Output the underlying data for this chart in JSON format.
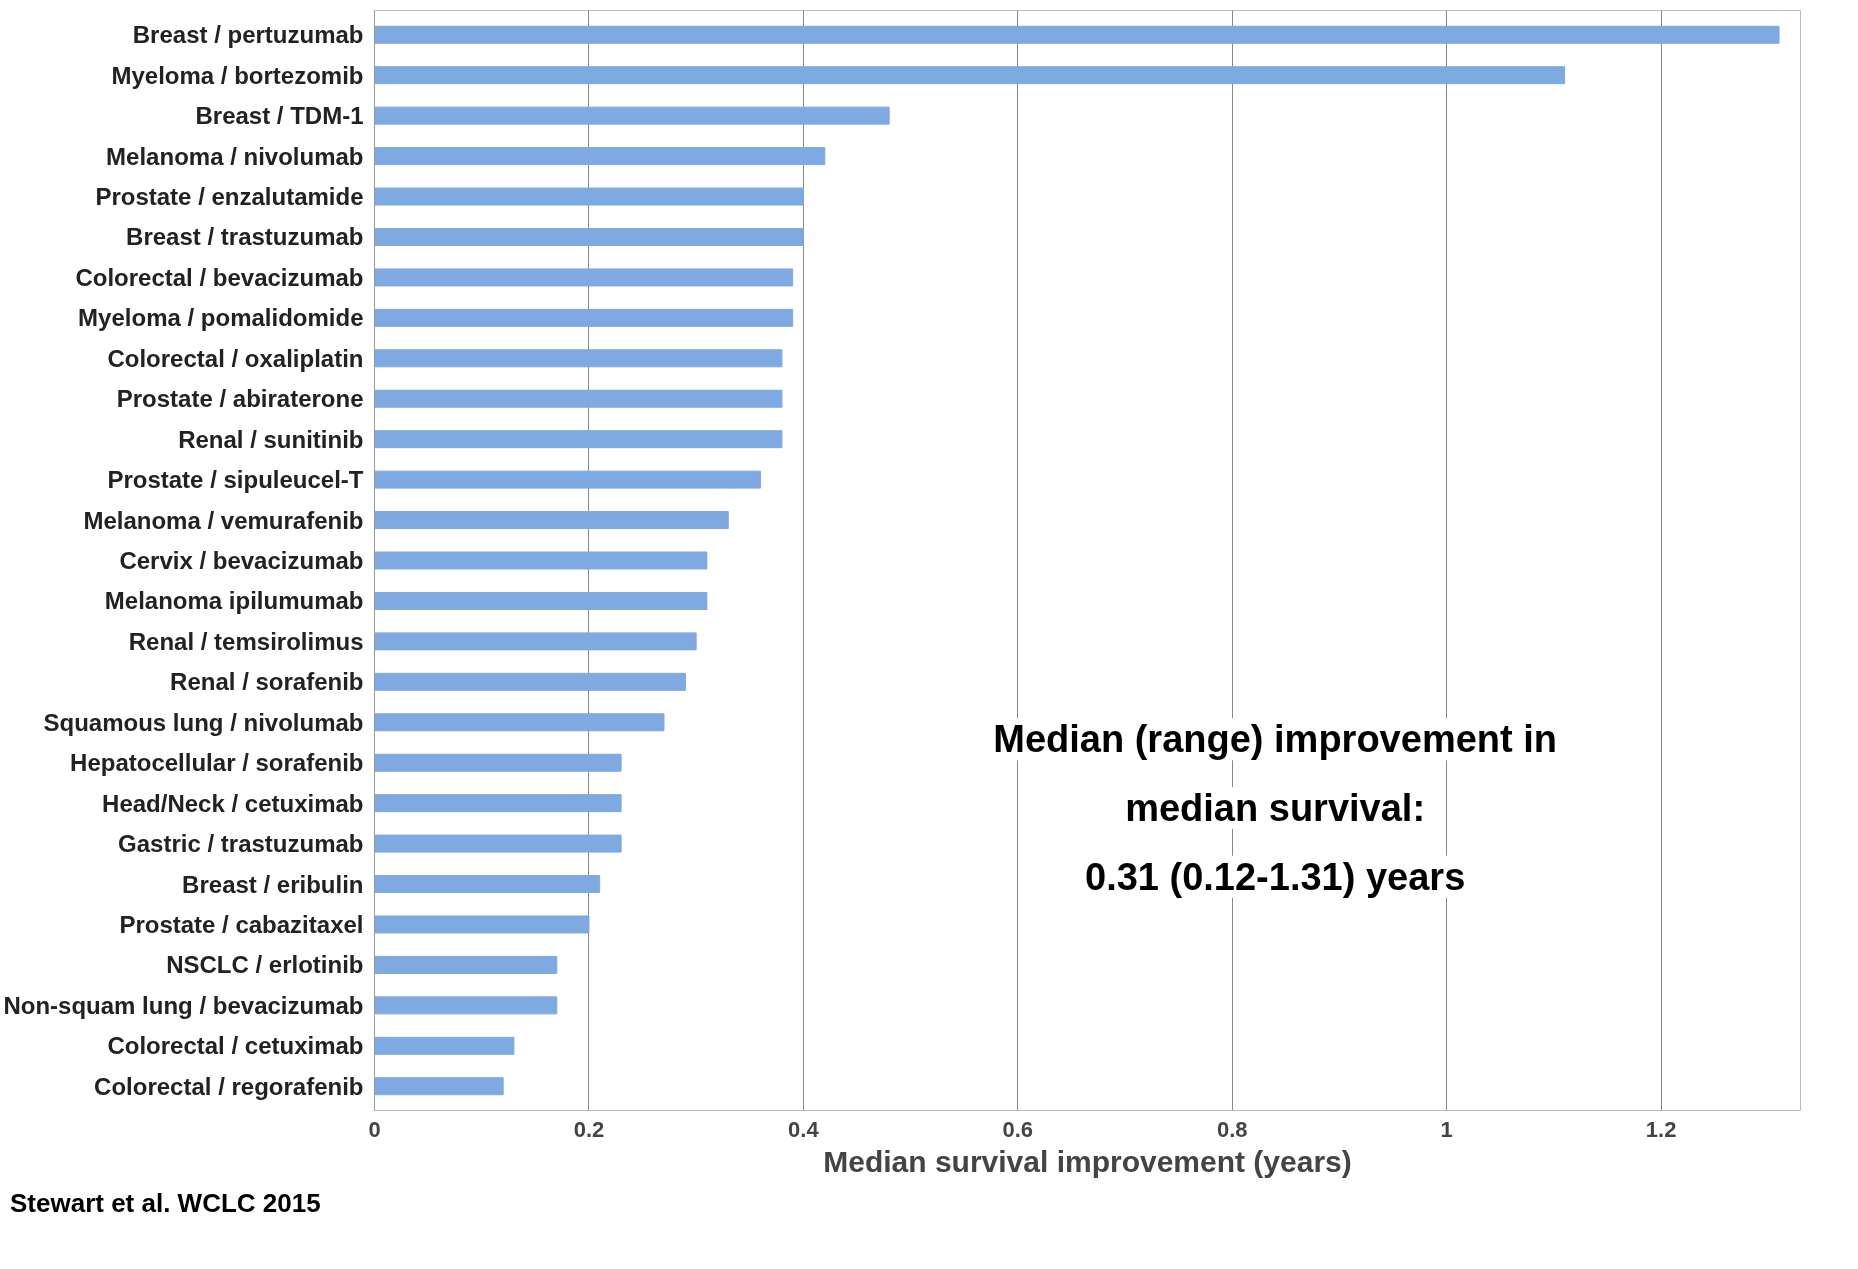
{
  "chart_data": {
    "type": "bar",
    "orientation": "horizontal",
    "xlabel": "Median survival improvement (years)",
    "categories": [
      "Breast / pertuzumab",
      "Myeloma / bortezomib",
      "Breast / TDM-1",
      "Melanoma / nivolumab",
      "Prostate / enzalutamide",
      "Breast / trastuzumab",
      "Colorectal / bevacizumab",
      "Myeloma / pomalidomide",
      "Colorectal / oxaliplatin",
      "Prostate / abiraterone",
      "Renal / sunitinib",
      "Prostate / sipuleucel-T",
      "Melanoma / vemurafenib",
      "Cervix / bevacizumab",
      "Melanoma ipilumumab",
      "Renal / temsirolimus",
      "Renal / sorafenib",
      "Squamous lung / nivolumab",
      "Hepatocellular / sorafenib",
      "Head/Neck / cetuximab",
      "Gastric / trastuzumab",
      "Breast / eribulin",
      "Prostate / cabazitaxel",
      "NSCLC / erlotinib",
      "Non-squam lung / bevacizumab",
      "Colorectal / cetuximab",
      "Colorectal / regorafenib"
    ],
    "values": [
      1.31,
      1.11,
      0.48,
      0.42,
      0.4,
      0.4,
      0.39,
      0.39,
      0.38,
      0.38,
      0.38,
      0.36,
      0.33,
      0.31,
      0.31,
      0.3,
      0.29,
      0.27,
      0.23,
      0.23,
      0.23,
      0.21,
      0.2,
      0.17,
      0.17,
      0.13,
      0.12
    ],
    "color": "#7ea9e1",
    "xlim": [
      0,
      1.33
    ],
    "xticks": [
      0,
      {
        "value": 0.2,
        "label": "0.2"
      },
      {
        "value": 0.4,
        "label": "0.4"
      },
      {
        "value": 0.6,
        "label": "0.6"
      },
      {
        "value": 0.8,
        "label": "0.8"
      },
      1,
      {
        "value": 1.2,
        "label": "1.2"
      }
    ],
    "grid": "x",
    "annotations": [
      "Median (range) improvement in",
      "median survival:",
      "0.31 (0.12-1.31) years",
      "Stewart et al. WCLC 2015"
    ]
  }
}
